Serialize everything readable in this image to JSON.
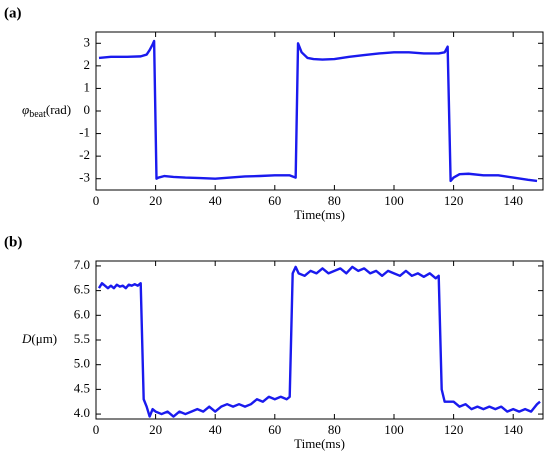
{
  "chart_data": [
    {
      "type": "line",
      "annotation": "(a)",
      "xlabel": "Time(ms)",
      "ylabel": {
        "symbol": "φ",
        "subscript": "beat",
        "unit": "(rad)"
      },
      "xlim": [
        0,
        150
      ],
      "xticks": [
        0,
        20,
        40,
        60,
        80,
        100,
        120,
        140
      ],
      "ylim": [
        -3.5,
        3.5
      ],
      "yticks": [
        -3,
        -2,
        -1,
        0,
        1,
        2,
        3
      ],
      "x": [
        1,
        5,
        10,
        15,
        17,
        18,
        19,
        19.5,
        20.3,
        21,
        23,
        26,
        30,
        35,
        40,
        45,
        50,
        55,
        60,
        65,
        67,
        67.8,
        69,
        71,
        73,
        76,
        80,
        85,
        90,
        95,
        100,
        105,
        110,
        115,
        117,
        118,
        119,
        120,
        122,
        125,
        130,
        135,
        140,
        145,
        148
      ],
      "series": [
        {
          "color": "#1a1aee",
          "values": [
            2.35,
            2.4,
            2.4,
            2.42,
            2.5,
            2.7,
            2.95,
            3.1,
            -3.0,
            -2.95,
            -2.88,
            -2.92,
            -2.95,
            -2.97,
            -3.0,
            -2.95,
            -2.9,
            -2.88,
            -2.85,
            -2.85,
            -2.95,
            3.0,
            2.6,
            2.35,
            2.3,
            2.28,
            2.3,
            2.4,
            2.48,
            2.55,
            2.6,
            2.6,
            2.55,
            2.55,
            2.6,
            2.85,
            -3.1,
            -2.95,
            -2.8,
            -2.78,
            -2.85,
            -2.85,
            -2.95,
            -3.05,
            -3.1
          ]
        }
      ]
    },
    {
      "type": "line",
      "annotation": "(b)",
      "xlabel": "Time(ms)",
      "ylabel": {
        "symbol": "D",
        "unit": "(μm)"
      },
      "xlim": [
        0,
        150
      ],
      "xticks": [
        0,
        20,
        40,
        60,
        80,
        100,
        120,
        140
      ],
      "ylim": [
        3.9,
        7.1
      ],
      "yticks": [
        {
          "value": 4,
          "label": "4.0"
        },
        4.5,
        {
          "value": 5,
          "label": "5.0"
        },
        5.5,
        {
          "value": 6,
          "label": "6.0"
        },
        6.5,
        {
          "value": 7,
          "label": "7.0"
        }
      ],
      "x": [
        1,
        2,
        3,
        4,
        5,
        6,
        7,
        8,
        9,
        10,
        11,
        12,
        13,
        14,
        15,
        16,
        17,
        18,
        19,
        20,
        22,
        24,
        26,
        28,
        30,
        32,
        34,
        36,
        38,
        40,
        42,
        44,
        46,
        48,
        50,
        52,
        54,
        56,
        58,
        60,
        62,
        64,
        65,
        66,
        67,
        68,
        70,
        72,
        74,
        76,
        78,
        80,
        82,
        84,
        86,
        88,
        90,
        92,
        94,
        96,
        98,
        100,
        102,
        104,
        106,
        108,
        110,
        112,
        114,
        115,
        116,
        117,
        118,
        120,
        122,
        124,
        126,
        128,
        130,
        132,
        134,
        136,
        138,
        140,
        142,
        144,
        146,
        148,
        149
      ],
      "series": [
        {
          "color": "#1a1aee",
          "values": [
            6.55,
            6.65,
            6.6,
            6.55,
            6.6,
            6.55,
            6.62,
            6.58,
            6.6,
            6.55,
            6.62,
            6.6,
            6.63,
            6.6,
            6.65,
            4.3,
            4.15,
            3.95,
            4.1,
            4.05,
            4.0,
            4.05,
            3.95,
            4.05,
            4.0,
            4.05,
            4.1,
            4.05,
            4.15,
            4.05,
            4.15,
            4.2,
            4.15,
            4.2,
            4.15,
            4.2,
            4.3,
            4.25,
            4.35,
            4.3,
            4.35,
            4.3,
            4.35,
            6.85,
            6.98,
            6.85,
            6.8,
            6.9,
            6.85,
            6.95,
            6.85,
            6.9,
            6.95,
            6.85,
            6.98,
            6.9,
            6.95,
            6.85,
            6.9,
            6.8,
            6.9,
            6.85,
            6.8,
            6.9,
            6.8,
            6.85,
            6.78,
            6.85,
            6.75,
            6.8,
            4.5,
            4.25,
            4.25,
            4.25,
            4.15,
            4.2,
            4.1,
            4.15,
            4.1,
            4.15,
            4.1,
            4.15,
            4.05,
            4.1,
            4.05,
            4.1,
            4.05,
            4.2,
            4.25
          ]
        }
      ]
    }
  ]
}
